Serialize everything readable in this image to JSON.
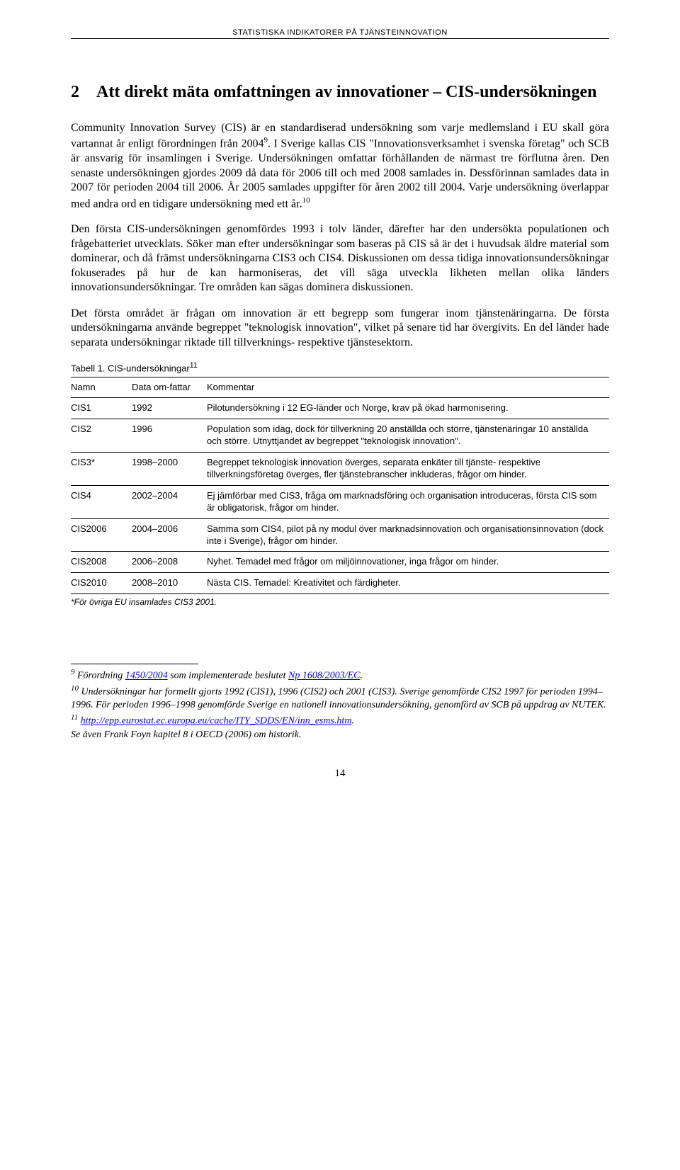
{
  "header": {
    "running": "STATISTISKA INDIKATORER PÅ TJÄNSTEINNOVATION",
    "page_number": "14"
  },
  "heading": {
    "number": "2",
    "title": "Att direkt mäta omfattningen av innovationer – CIS-undersökningen"
  },
  "paragraphs": {
    "p1a": "Community Innovation Survey (CIS) är en standardiserad undersökning som varje medlemsland i EU skall göra vartannat år enligt förordningen från 2004",
    "p1_sup": "9",
    "p1b": ". I Sverige kallas CIS \"Innovationsverksamhet i svenska företag\" och SCB är ansvarig för insamlingen i Sverige. Undersökningen omfattar förhållanden de närmast tre förflutna åren. Den senaste undersökningen gjordes 2009 då data för 2006 till och med 2008 samlades in. Dessförinnan samlades data in 2007 för perioden 2004 till 2006. År 2005 samlades uppgifter för åren 2002 till 2004. Varje undersökning överlappar med andra ord en tidigare undersökning med ett år.",
    "p1_sup2": "10",
    "p2": "Den första CIS-undersökningen genomfördes 1993 i tolv länder, därefter har den undersökta populationen och frågebatteriet utvecklats. Söker man efter undersökningar som baseras på CIS så är det i huvudsak äldre material som dominerar, och då främst undersökningarna CIS3 och CIS4. Diskussionen om dessa tidiga innovationsundersökningar fokuserades på hur de kan harmoniseras, det vill säga utveckla likheten mellan olika länders innovationsundersökningar. Tre områden kan sägas dominera diskussionen.",
    "p3": "Det första området är frågan om innovation är ett begrepp som fungerar inom tjänstenäringarna. De första undersökningarna använde begreppet \"teknologisk innovation\", vilket på senare tid har övergivits. En del länder hade separata undersökningar riktade till tillverknings- respektive tjänstesektorn."
  },
  "table": {
    "caption_prefix": "Tabell 1. CIS-undersökningar",
    "caption_sup": "11",
    "headers": {
      "name": "Namn",
      "year": "Data om-fattar",
      "comment": "Kommentar"
    },
    "rows": [
      {
        "name": "CIS1",
        "year": "1992",
        "comment": "Pilotundersökning i 12 EG-länder och Norge, krav på ökad harmonisering."
      },
      {
        "name": "CIS2",
        "year": "1996",
        "comment": "Population som idag, dock för tillverkning 20 anställda och större, tjänstenäringar 10 anställda och större. Utnyttjandet av begreppet \"teknologisk innovation\"."
      },
      {
        "name": "CIS3*",
        "year": "1998–2000",
        "comment": "Begreppet teknologisk innovation överges, separata enkäter till tjänste- respektive tillverkningsföretag överges, fler tjänstebranscher inkluderas, frågor om hinder."
      },
      {
        "name": "CIS4",
        "year": "2002–2004",
        "comment": "Ej jämförbar med CIS3, fråga om marknadsföring och organisation introduceras, första CIS som är obligatorisk, frågor om hinder."
      },
      {
        "name": "CIS2006",
        "year": "2004–2006",
        "comment": "Samma som CIS4, pilot på ny modul över marknadsinnovation och organisationsinnovation (dock inte i Sverige), frågor om hinder."
      },
      {
        "name": "CIS2008",
        "year": "2006–2008",
        "comment": "Nyhet. Temadel med frågor om miljöinnovationer, inga frågor om hinder."
      },
      {
        "name": "CIS2010",
        "year": "2008–2010",
        "comment": "Nästa CIS. Temadel: Kreativitet och färdigheter."
      }
    ],
    "footnote": "*För övriga EU insamlades CIS3 2001."
  },
  "footnotes": {
    "f9_a": "Förordning ",
    "f9_link1": "1450/2004",
    "f9_b": " som implementerade beslutet ",
    "f9_link2": "Np 1608/2003/EC",
    "f9_c": ".",
    "f10": "Undersökningar har formellt gjorts 1992 (CIS1), 1996 (CIS2) och 2001 (CIS3). Sverige genomförde CIS2 1997 för perioden 1994–1996. För perioden 1996–1998 genomförde Sverige en nationell innovationsundersökning, genomförd av SCB på uppdrag av NUTEK.",
    "f11_link": "http://epp.eurostat.ec.europa.eu/cache/ITY_SDDS/EN/inn_esms.htm",
    "f11_tail": ".",
    "f11_line2": "Se även Frank Foyn kapitel 8 i OECD (2006) om historik."
  }
}
